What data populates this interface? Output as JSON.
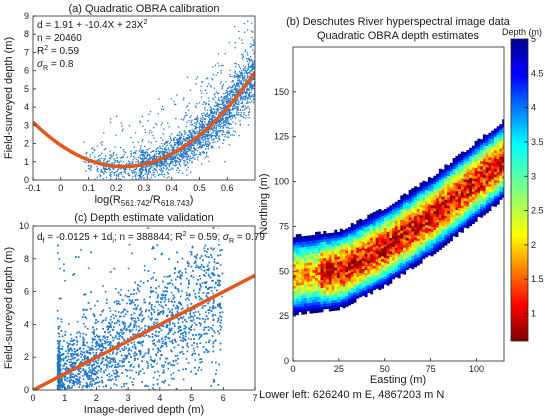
{
  "chart_data": [
    {
      "type": "scatter",
      "title": "(a) Quadratic OBRA calibration",
      "xlabel": "log(R561.742/R618.743)",
      "xlabel_main": "log(R",
      "xlabel_sub1": "561.742",
      "xlabel_mid": "/R",
      "xlabel_sub2": "618.743",
      "xlabel_end": ")",
      "ylabel": "Field-surveyed depth (m)",
      "xlim": [
        -0.1,
        0.7
      ],
      "ylim": [
        0,
        9
      ],
      "xticks": [
        -0.1,
        0,
        0.1,
        0.2,
        0.3,
        0.4,
        0.5,
        0.6
      ],
      "xtick_labels": [
        "-0.1",
        "0",
        "0.1",
        "0.2",
        "0.3",
        "0.4",
        "0.5",
        "0.6"
      ],
      "yticks": [
        0,
        1,
        2,
        3,
        4,
        5,
        6,
        7,
        8,
        9
      ],
      "ytick_labels": [
        "0",
        "1",
        "2",
        "3",
        "4",
        "5",
        "6",
        "7",
        "8",
        "9"
      ],
      "annotations": {
        "equation_base": "d = 1.91 + -10.4X + 23X",
        "equation_exp": "2",
        "n": "n = 20460",
        "r2_base": "R",
        "r2_exp": "2",
        "r2_val": " = 0.59",
        "sigma_sym": "σ",
        "sigma_sub": "R",
        "sigma_val": " = 0.8"
      },
      "fit": {
        "name": "quadratic fit",
        "a": 1.91,
        "b": -10.4,
        "c": 23
      },
      "point_color": "#1f77c8",
      "fit_color": "#e1581a"
    },
    {
      "type": "scatter",
      "title": "(c) Depth estimate validation",
      "xlabel": "Image-derived depth (m)",
      "ylabel": "Field-surveyed depth (m)",
      "xlim": [
        0,
        7
      ],
      "ylim": [
        0,
        10
      ],
      "xticks": [
        0,
        1,
        2,
        3,
        4,
        5,
        6,
        7
      ],
      "xtick_labels": [
        "0",
        "1",
        "2",
        "3",
        "4",
        "5",
        "6",
        "7"
      ],
      "yticks": [
        0,
        2,
        4,
        6,
        8,
        10
      ],
      "ytick_labels": [
        "0",
        "2",
        "4",
        "6",
        "8",
        "10"
      ],
      "annotations": {
        "d_sym": "d",
        "d_sub_f": "f",
        "eq_mid": " = -0.0125 + 1d",
        "d_sub_i": "i",
        "eq_n": "; n = 388844; R",
        "r2_exp": "2",
        "eq_r2": " = 0.59; ",
        "sigma_sym": "σ",
        "sigma_sub": "R",
        "sigma_val": " = 0.79"
      },
      "fit": {
        "name": "1:1 line",
        "intercept": -0.0125,
        "slope": 1
      },
      "point_color": "#1f77c8",
      "fit_color": "#e1581a"
    },
    {
      "type": "heatmap",
      "title": "(b) Deschutes River hyperspectral image data",
      "subtitle": "Quadratic OBRA depth estimates",
      "xlabel": "Easting (m)",
      "ylabel": "Northing (m)",
      "xlim": [
        0,
        115
      ],
      "ylim": [
        0,
        175
      ],
      "xticks": [
        0,
        25,
        50,
        75,
        100
      ],
      "xtick_labels": [
        "0",
        "25",
        "50",
        "75",
        "100"
      ],
      "yticks": [
        0,
        25,
        50,
        75,
        100,
        125,
        150
      ],
      "ytick_labels": [
        "0",
        "25",
        "50",
        "75",
        "100",
        "125",
        "150"
      ],
      "footer": "Lower left: 626240 m E, 4867203 m N",
      "colorbar": {
        "label": "Depth (m)",
        "range": [
          0.6,
          5
        ],
        "ticks": [
          1,
          1.5,
          2,
          2.5,
          3,
          3.5,
          4,
          4.5,
          5
        ],
        "tick_labels": [
          "1",
          "1.5",
          "2",
          "2.5",
          "3",
          "3.5",
          "4",
          "4.5",
          "5"
        ],
        "colormap": "jet-reversed (dark red = shallow, dark blue = deep)"
      },
      "channel": {
        "centerline_y_at_x": [
          [
            0,
            47
          ],
          [
            25,
            50
          ],
          [
            50,
            63
          ],
          [
            75,
            80
          ],
          [
            100,
            100
          ],
          [
            115,
            112
          ]
        ],
        "width_m": 42
      }
    }
  ]
}
